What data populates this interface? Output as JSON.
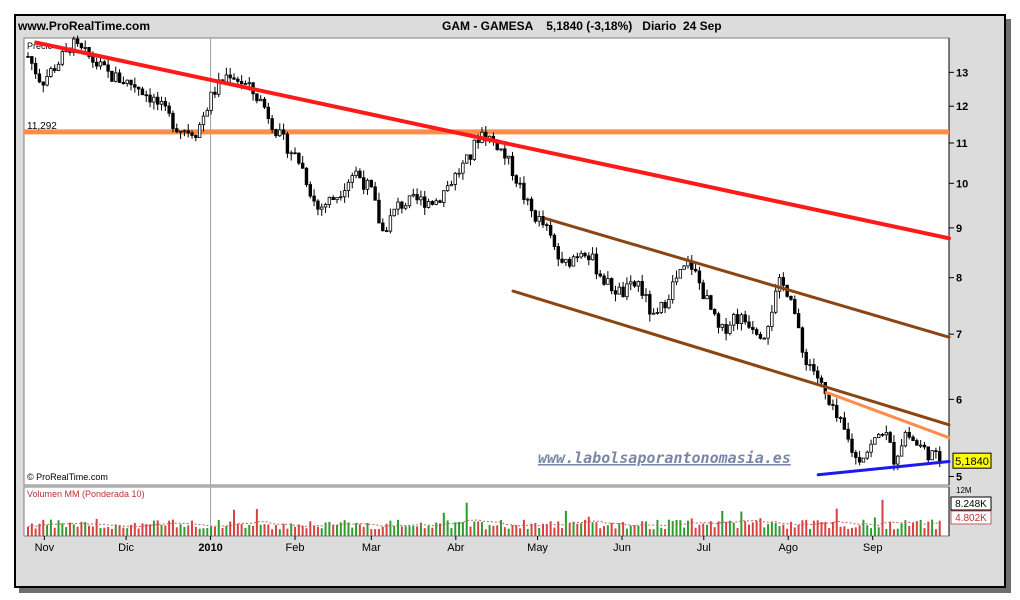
{
  "header": {
    "site": "www.ProRealTime.com",
    "title": "GAM - GAMESA    5,1840 (-3,18%)   Diario  24 Sep"
  },
  "chart_data": {
    "type": "candlestick",
    "panel_label": "Precio",
    "copyright": "© ProRealTime.com",
    "watermark": "www.labolsaporantonomasia.es",
    "y_scale": "log",
    "ylim": [
      4.9,
      14.1
    ],
    "y_ticks": [
      {
        "label": "5",
        "value": 5
      },
      {
        "label": "6",
        "value": 6
      },
      {
        "label": "7",
        "value": 7
      },
      {
        "label": "8",
        "value": 8
      },
      {
        "label": "9",
        "value": 9
      },
      {
        "label": "10",
        "value": 10
      },
      {
        "label": "11",
        "value": 11
      },
      {
        "label": "12",
        "value": 12
      },
      {
        "label": "13",
        "value": 13
      }
    ],
    "last_price_label": "5,1840",
    "last_price": 5.184,
    "hline": {
      "label": "11,292",
      "value": 11.292,
      "color": "#ff8c4a"
    },
    "x_labels": [
      {
        "label": "Nov",
        "day": 6
      },
      {
        "label": "Dic",
        "day": 36
      },
      {
        "label": "2010",
        "day": 67
      },
      {
        "label": "Feb",
        "day": 98
      },
      {
        "label": "Mar",
        "day": 126
      },
      {
        "label": "Abr",
        "day": 157
      },
      {
        "label": "May",
        "day": 187
      },
      {
        "label": "Jun",
        "day": 218
      },
      {
        "label": "Jul",
        "day": 248
      },
      {
        "label": "Ago",
        "day": 279
      },
      {
        "label": "Sep",
        "day": 310
      }
    ],
    "year_divider_day": 67,
    "trendlines": [
      {
        "name": "red-resistance",
        "color": "#ff1a1a",
        "width": 4,
        "p1": {
          "day": 3,
          "price": 13.95
        },
        "p2": {
          "day": 338,
          "price": 8.78
        }
      },
      {
        "name": "channel-top",
        "color": "#8b4513",
        "width": 3,
        "p1": {
          "day": 190,
          "price": 9.2
        },
        "p2": {
          "day": 338,
          "price": 6.95
        }
      },
      {
        "name": "channel-bottom",
        "color": "#8b4513",
        "width": 3,
        "p1": {
          "day": 178,
          "price": 7.75
        },
        "p2": {
          "day": 338,
          "price": 5.65
        }
      },
      {
        "name": "orange-resistance",
        "color": "#ff8c4a",
        "width": 3,
        "p1": {
          "day": 293,
          "price": 6.1
        },
        "p2": {
          "day": 338,
          "price": 5.48
        }
      },
      {
        "name": "blue-support",
        "color": "#1a1aee",
        "width": 3,
        "p1": {
          "day": 290,
          "price": 5.02
        },
        "p2": {
          "day": 338,
          "price": 5.18
        }
      }
    ],
    "close_anchors": [
      {
        "day": 0,
        "price": 13.5
      },
      {
        "day": 5,
        "price": 12.7
      },
      {
        "day": 12,
        "price": 13.4
      },
      {
        "day": 16,
        "price": 13.9
      },
      {
        "day": 22,
        "price": 13.5
      },
      {
        "day": 30,
        "price": 12.9
      },
      {
        "day": 40,
        "price": 12.6
      },
      {
        "day": 46,
        "price": 12.2
      },
      {
        "day": 55,
        "price": 11.4
      },
      {
        "day": 62,
        "price": 11.3
      },
      {
        "day": 68,
        "price": 12.4
      },
      {
        "day": 74,
        "price": 13.0
      },
      {
        "day": 80,
        "price": 12.6
      },
      {
        "day": 86,
        "price": 12.1
      },
      {
        "day": 92,
        "price": 11.2
      },
      {
        "day": 100,
        "price": 10.5
      },
      {
        "day": 106,
        "price": 9.4
      },
      {
        "day": 113,
        "price": 9.7
      },
      {
        "day": 120,
        "price": 10.3
      },
      {
        "day": 126,
        "price": 9.8
      },
      {
        "day": 130,
        "price": 8.9
      },
      {
        "day": 136,
        "price": 9.5
      },
      {
        "day": 143,
        "price": 9.6
      },
      {
        "day": 150,
        "price": 9.6
      },
      {
        "day": 157,
        "price": 10.2
      },
      {
        "day": 162,
        "price": 10.6
      },
      {
        "day": 166,
        "price": 11.3
      },
      {
        "day": 172,
        "price": 11.0
      },
      {
        "day": 178,
        "price": 10.3
      },
      {
        "day": 184,
        "price": 9.4
      },
      {
        "day": 190,
        "price": 9.0
      },
      {
        "day": 196,
        "price": 8.2
      },
      {
        "day": 204,
        "price": 8.6
      },
      {
        "day": 212,
        "price": 7.9
      },
      {
        "day": 218,
        "price": 7.7
      },
      {
        "day": 224,
        "price": 7.9
      },
      {
        "day": 230,
        "price": 7.2
      },
      {
        "day": 237,
        "price": 7.9
      },
      {
        "day": 243,
        "price": 8.3
      },
      {
        "day": 248,
        "price": 7.7
      },
      {
        "day": 254,
        "price": 7.0
      },
      {
        "day": 259,
        "price": 7.3
      },
      {
        "day": 265,
        "price": 7.2
      },
      {
        "day": 270,
        "price": 7.0
      },
      {
        "day": 276,
        "price": 7.9
      },
      {
        "day": 280,
        "price": 7.7
      },
      {
        "day": 284,
        "price": 6.7
      },
      {
        "day": 289,
        "price": 6.4
      },
      {
        "day": 294,
        "price": 5.9
      },
      {
        "day": 299,
        "price": 5.6
      },
      {
        "day": 304,
        "price": 5.2
      },
      {
        "day": 309,
        "price": 5.35
      },
      {
        "day": 314,
        "price": 5.6
      },
      {
        "day": 318,
        "price": 5.2
      },
      {
        "day": 322,
        "price": 5.55
      },
      {
        "day": 326,
        "price": 5.4
      },
      {
        "day": 330,
        "price": 5.3
      },
      {
        "day": 335,
        "price": 5.184
      }
    ],
    "volume": {
      "label": "Volumen MM (Ponderada 10)",
      "top_label": "12M",
      "last_label": "8.248K",
      "ma_label": "4.802K",
      "last_value": 8248,
      "ma_value": 4802,
      "ylim": [
        0,
        12000
      ]
    }
  },
  "colors": {
    "background": "#dcdcdc",
    "plot_bg": "#ffffff",
    "candle": "#000000",
    "volume_up": "#2e9b2e",
    "volume_down": "#d94040",
    "last_price_box": "#ffff00",
    "watermark": "#7a86a8"
  }
}
